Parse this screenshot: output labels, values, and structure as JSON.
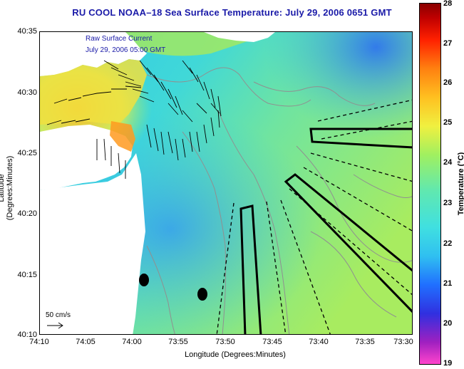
{
  "title": "RU COOL  NOAA–18  Sea Surface Temperature:  July 29, 2006 0651 GMT",
  "legend": {
    "line1": "Raw Surface Current",
    "line2": "July 29, 2006 05:00 GMT"
  },
  "scale": {
    "label": "50 cm/s"
  },
  "axes": {
    "xlabel": "Longitude (Degrees:Minutes)",
    "ylabel": "Latitude (Degrees:Minutes)",
    "xticks": [
      "74:10",
      "74:05",
      "74:00",
      "73:55",
      "73:50",
      "73:45",
      "73:40",
      "73:35",
      "73:30"
    ],
    "yticks": [
      "40:35",
      "40:30",
      "40:25",
      "40:20",
      "40:15",
      "40:10"
    ]
  },
  "colorbar": {
    "label": "Temperature (°C)",
    "ticks": [
      "28",
      "27",
      "26",
      "25",
      "24",
      "23",
      "22",
      "21",
      "20",
      "19"
    ],
    "min": 19,
    "max": 28
  },
  "colors": {
    "title": "#1a1aa8",
    "land": "#ffffff",
    "sea_warm": "#9ee86a",
    "sea_mid": "#40dcd6",
    "sea_cool": "#34b8ee"
  }
}
